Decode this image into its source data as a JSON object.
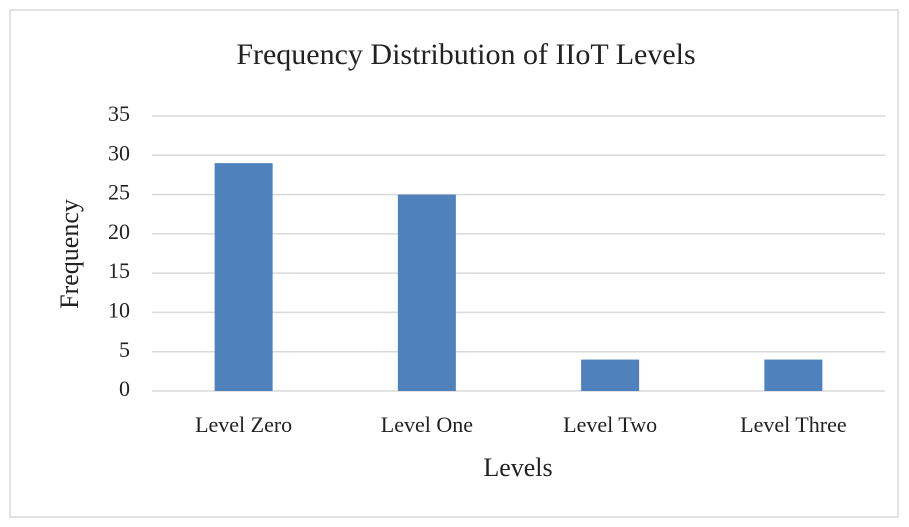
{
  "chart_data": {
    "type": "bar",
    "title": "Frequency Distribution of IIoT Levels",
    "x_label": "Levels",
    "y_label": "Frequency",
    "categories": [
      "Level Zero",
      "Level One",
      "Level Two",
      "Level Three"
    ],
    "values": [
      29,
      25,
      4,
      4
    ],
    "color": "#4f81bd",
    "ylim": [
      0,
      35
    ],
    "yticks": [
      0,
      5,
      10,
      15,
      20,
      25,
      30,
      35
    ],
    "grid": true
  }
}
